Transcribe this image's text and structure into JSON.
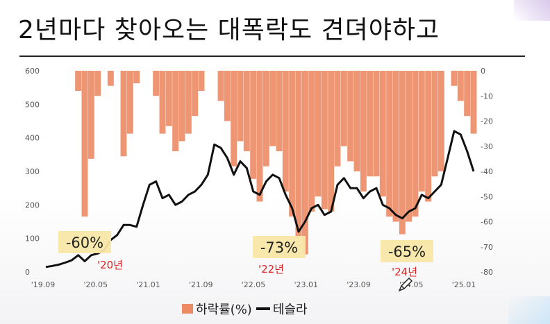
{
  "title": "2년마다 찾아오는 대폭락도 견뎌야하고",
  "chart_data": {
    "type": "bar+line",
    "left_axis": {
      "ticks": [
        0,
        100,
        200,
        300,
        400,
        500,
        600
      ],
      "ylim": [
        0,
        600
      ]
    },
    "right_axis": {
      "ticks": [
        0,
        -10,
        -20,
        -30,
        -40,
        -50,
        -60,
        -70,
        -80
      ],
      "ylim": [
        -80,
        0
      ]
    },
    "x_ticks": [
      "'19.09",
      "'20.05",
      "'21.01",
      "'21.09",
      "'22.05",
      "'23.01",
      "'23.09",
      "'24.05",
      "'25.01"
    ],
    "series": [
      {
        "name": "하락률(%)",
        "kind": "bar",
        "axis": "right",
        "color": "#ec8a64",
        "x": [
          "2019-09",
          "2019-10",
          "2019-11",
          "2019-12",
          "2020-01",
          "2020-02",
          "2020-03",
          "2020-04",
          "2020-05",
          "2020-06",
          "2020-07",
          "2020-08",
          "2020-09",
          "2020-10",
          "2020-11",
          "2020-12",
          "2021-01",
          "2021-02",
          "2021-03",
          "2021-04",
          "2021-05",
          "2021-06",
          "2021-07",
          "2021-08",
          "2021-09",
          "2021-10",
          "2021-11",
          "2021-12",
          "2022-01",
          "2022-02",
          "2022-03",
          "2022-04",
          "2022-05",
          "2022-06",
          "2022-07",
          "2022-08",
          "2022-09",
          "2022-10",
          "2022-11",
          "2022-12",
          "2023-01",
          "2023-02",
          "2023-03",
          "2023-04",
          "2023-05",
          "2023-06",
          "2023-07",
          "2023-08",
          "2023-09",
          "2023-10",
          "2023-11",
          "2023-12",
          "2024-01",
          "2024-02",
          "2024-03",
          "2024-04",
          "2024-05",
          "2024-06",
          "2024-07",
          "2024-08",
          "2024-09",
          "2024-10",
          "2024-11",
          "2024-12",
          "2025-01",
          "2025-02",
          "2025-03"
        ],
        "values": [
          0,
          0,
          0,
          0,
          0,
          -8,
          -58,
          -35,
          -10,
          0,
          -6,
          0,
          -34,
          -25,
          -5,
          0,
          0,
          -10,
          -25,
          -22,
          -32,
          -28,
          -25,
          -18,
          -8,
          0,
          0,
          -12,
          -20,
          -38,
          -28,
          -32,
          -43,
          -52,
          -38,
          -30,
          -32,
          -48,
          -58,
          -66,
          -73,
          -56,
          -50,
          -55,
          -56,
          -38,
          -30,
          -36,
          -40,
          -48,
          -42,
          -42,
          -50,
          -58,
          -60,
          -65,
          -60,
          -58,
          -48,
          -52,
          -42,
          -40,
          0,
          -6,
          -12,
          -18,
          -25
        ]
      },
      {
        "name": "테슬라",
        "kind": "line",
        "axis": "left",
        "color": "#111111",
        "x": [
          "2019-09",
          "2019-10",
          "2019-11",
          "2019-12",
          "2020-01",
          "2020-02",
          "2020-03",
          "2020-04",
          "2020-05",
          "2020-06",
          "2020-07",
          "2020-08",
          "2020-09",
          "2020-10",
          "2020-11",
          "2020-12",
          "2021-01",
          "2021-02",
          "2021-03",
          "2021-04",
          "2021-05",
          "2021-06",
          "2021-07",
          "2021-08",
          "2021-09",
          "2021-10",
          "2021-11",
          "2021-12",
          "2022-01",
          "2022-02",
          "2022-03",
          "2022-04",
          "2022-05",
          "2022-06",
          "2022-07",
          "2022-08",
          "2022-09",
          "2022-10",
          "2022-11",
          "2022-12",
          "2023-01",
          "2023-02",
          "2023-03",
          "2023-04",
          "2023-05",
          "2023-06",
          "2023-07",
          "2023-08",
          "2023-09",
          "2023-10",
          "2023-11",
          "2023-12",
          "2024-01",
          "2024-02",
          "2024-03",
          "2024-04",
          "2024-05",
          "2024-06",
          "2024-07",
          "2024-08",
          "2024-09",
          "2024-10",
          "2024-11",
          "2024-12",
          "2025-01",
          "2025-02",
          "2025-03"
        ],
        "values": [
          15,
          18,
          22,
          28,
          35,
          50,
          32,
          50,
          55,
          65,
          95,
          110,
          140,
          140,
          135,
          200,
          260,
          270,
          220,
          230,
          200,
          210,
          230,
          240,
          260,
          290,
          380,
          370,
          340,
          290,
          330,
          310,
          240,
          230,
          270,
          290,
          280,
          230,
          190,
          120,
          150,
          190,
          200,
          170,
          180,
          260,
          280,
          250,
          250,
          220,
          240,
          250,
          200,
          190,
          170,
          160,
          180,
          190,
          230,
          220,
          240,
          260,
          340,
          420,
          410,
          360,
          300
        ]
      }
    ],
    "annotations": [
      {
        "label": "-60%",
        "year": "'20년"
      },
      {
        "label": "-73%",
        "year": "'22년"
      },
      {
        "label": "-65%",
        "year": "'24년"
      }
    ]
  },
  "legend": {
    "drop_label": "하락률(%)",
    "tesla_label": "테슬라"
  }
}
